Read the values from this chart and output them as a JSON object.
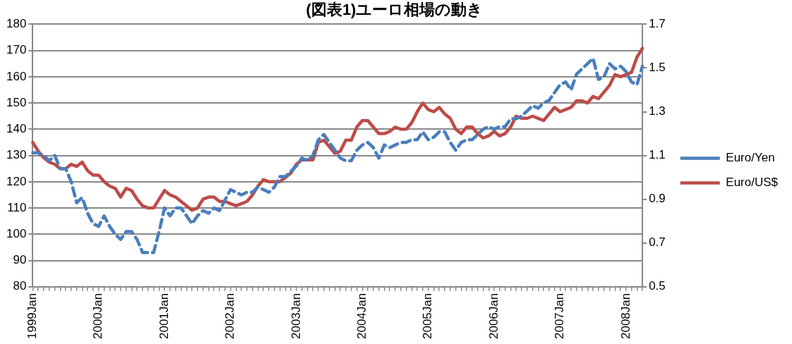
{
  "chart_data": {
    "type": "line",
    "title": "(図表1)ユーロ相場の動き",
    "categories": [
      "1999Jan",
      null,
      null,
      null,
      null,
      null,
      null,
      null,
      null,
      null,
      null,
      null,
      "2000Jan",
      null,
      null,
      null,
      null,
      null,
      null,
      null,
      null,
      null,
      null,
      null,
      "2001Jan",
      null,
      null,
      null,
      null,
      null,
      null,
      null,
      null,
      null,
      null,
      null,
      "2002Jan",
      null,
      null,
      null,
      null,
      null,
      null,
      null,
      null,
      null,
      null,
      null,
      "2003Jan",
      null,
      null,
      null,
      null,
      null,
      null,
      null,
      null,
      null,
      null,
      null,
      "2004Jan",
      null,
      null,
      null,
      null,
      null,
      null,
      null,
      null,
      null,
      null,
      null,
      "2005Jan",
      null,
      null,
      null,
      null,
      null,
      null,
      null,
      null,
      null,
      null,
      null,
      "2006Jan",
      null,
      null,
      null,
      null,
      null,
      null,
      null,
      null,
      null,
      null,
      null,
      "2007Jan",
      null,
      null,
      null,
      null,
      null,
      null,
      null,
      null,
      null,
      null,
      null,
      "2008Jan",
      null,
      null,
      null
    ],
    "series": [
      {
        "name": "Euro/Yen",
        "color": "#4a7ebb",
        "line_style": "dashed",
        "values": [
          131,
          131,
          130,
          128,
          130,
          125,
          125,
          120,
          112,
          114,
          108,
          104,
          103,
          107,
          103,
          100,
          98,
          101,
          101,
          98,
          93,
          93,
          93,
          101,
          110,
          107,
          110,
          110,
          107,
          104,
          107,
          109,
          108,
          110,
          109,
          113,
          117,
          116,
          115,
          116,
          116,
          118,
          117,
          116,
          118,
          122,
          122,
          124,
          126,
          129,
          128,
          130,
          136,
          138,
          135,
          132,
          129,
          128,
          128,
          132,
          134,
          135,
          133,
          129,
          134,
          133,
          134,
          135,
          135,
          136,
          136,
          139,
          136,
          137,
          139,
          139,
          135,
          132,
          135,
          136,
          136,
          138,
          140,
          141,
          140,
          141,
          141,
          144,
          144,
          145,
          147,
          149,
          148,
          150,
          151,
          154,
          157,
          158,
          155,
          161,
          163,
          165,
          167,
          159,
          160,
          165,
          163,
          164,
          162,
          158,
          157,
          164
        ]
      },
      {
        "name": "Euro/US$",
        "color": "#be4b48",
        "line_style": "solid",
        "axis": "y2",
        "values": [
          1.16,
          1.12,
          1.09,
          1.07,
          1.06,
          1.04,
          1.04,
          1.06,
          1.05,
          1.07,
          1.03,
          1.01,
          1.01,
          0.98,
          0.96,
          0.95,
          0.91,
          0.95,
          0.94,
          0.9,
          0.87,
          0.86,
          0.86,
          0.9,
          0.94,
          0.92,
          0.91,
          0.89,
          0.87,
          0.85,
          0.86,
          0.9,
          0.91,
          0.91,
          0.89,
          0.89,
          0.88,
          0.87,
          0.88,
          0.89,
          0.92,
          0.96,
          0.99,
          0.98,
          0.98,
          0.98,
          1.0,
          1.02,
          1.06,
          1.08,
          1.08,
          1.08,
          1.16,
          1.17,
          1.14,
          1.11,
          1.12,
          1.17,
          1.17,
          1.23,
          1.26,
          1.26,
          1.23,
          1.2,
          1.2,
          1.21,
          1.23,
          1.22,
          1.22,
          1.25,
          1.3,
          1.34,
          1.31,
          1.3,
          1.32,
          1.29,
          1.27,
          1.22,
          1.2,
          1.23,
          1.23,
          1.2,
          1.18,
          1.19,
          1.21,
          1.19,
          1.2,
          1.23,
          1.28,
          1.27,
          1.27,
          1.28,
          1.27,
          1.26,
          1.29,
          1.32,
          1.3,
          1.31,
          1.32,
          1.35,
          1.35,
          1.34,
          1.37,
          1.36,
          1.39,
          1.42,
          1.47,
          1.46,
          1.47,
          1.48,
          1.55,
          1.59
        ]
      }
    ],
    "ylim": [
      80,
      180
    ],
    "yticks": [
      80,
      90,
      100,
      110,
      120,
      130,
      140,
      150,
      160,
      170,
      180
    ],
    "y2lim": [
      0.5,
      1.7
    ],
    "y2ticks": [
      0.5,
      0.7,
      0.9,
      1.1,
      1.3,
      1.5,
      1.7
    ],
    "grid": "y",
    "legend": "right",
    "marker": "none"
  }
}
